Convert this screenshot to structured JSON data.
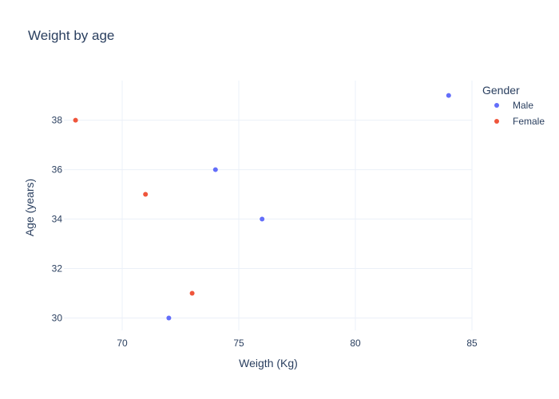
{
  "chart_data": {
    "type": "scatter",
    "title": "Weight by age",
    "xlabel": "Weigth (Kg)",
    "ylabel": "Age (years)",
    "xlim": [
      67.5,
      85
    ],
    "ylim": [
      29.5,
      39.6
    ],
    "x_ticks": [
      70,
      75,
      80,
      85
    ],
    "y_ticks": [
      30,
      32,
      34,
      36,
      38
    ],
    "grid": true,
    "legend": {
      "title": "Gender",
      "placement": "right"
    },
    "series": [
      {
        "name": "Male",
        "color": "#636efa",
        "points": [
          {
            "x": 84,
            "y": 39
          },
          {
            "x": 74,
            "y": 36
          },
          {
            "x": 76,
            "y": 34
          },
          {
            "x": 72,
            "y": 30
          }
        ]
      },
      {
        "name": "Female",
        "color": "#ef553b",
        "points": [
          {
            "x": 68,
            "y": 38
          },
          {
            "x": 71,
            "y": 35
          },
          {
            "x": 73,
            "y": 31
          }
        ]
      }
    ]
  }
}
